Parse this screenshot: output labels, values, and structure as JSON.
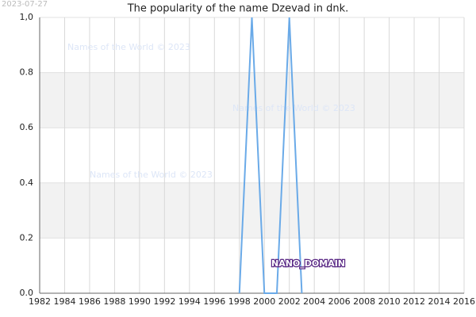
{
  "chart_data": {
    "type": "line",
    "title": "The popularity of the name Dzevad in dnk.",
    "date_stamp": "2023-07-27",
    "watermarks": [
      "Names of the World © 2023",
      "Names of the World © 2023",
      "Names of the World © 2023"
    ],
    "annotation": "NANO_DOMAIN",
    "x": [
      1998,
      1999,
      2000,
      2001,
      2002,
      2003
    ],
    "series": [
      {
        "color": "#6aaae8",
        "values": [
          0,
          1,
          0,
          0,
          1,
          0
        ]
      }
    ],
    "xlim": [
      1982,
      2016
    ],
    "xticks": [
      1982,
      1984,
      1986,
      1988,
      1990,
      1992,
      1994,
      1996,
      1998,
      2000,
      2002,
      2004,
      2006,
      2008,
      2010,
      2012,
      2014,
      2016
    ],
    "ylim": [
      0,
      1
    ],
    "yticks": [
      {
        "value": 0,
        "label": "0.0"
      },
      0.2,
      0.4,
      0.6,
      0.8,
      {
        "value": 1,
        "label": "1,0"
      }
    ],
    "grid": true
  }
}
